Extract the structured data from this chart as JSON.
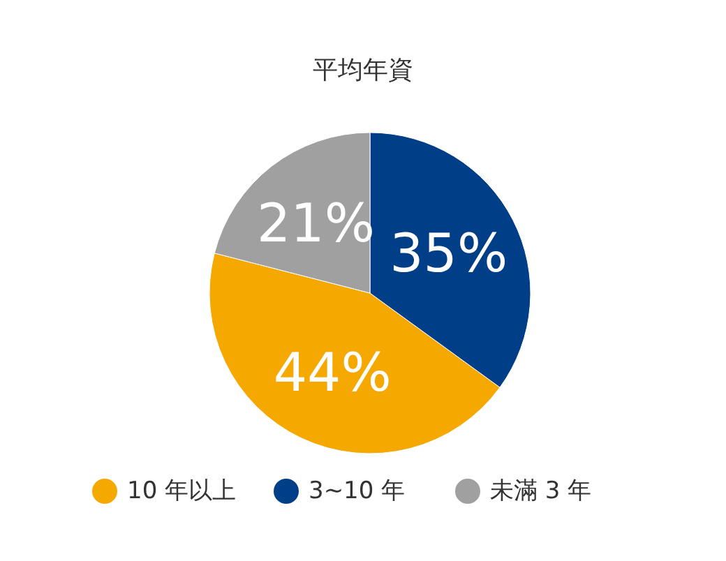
{
  "chart_data": {
    "type": "pie",
    "title": "平均年資",
    "categories": [
      "10 年以上",
      "3~10 年",
      "未滿 3 年"
    ],
    "values": [
      44,
      35,
      21
    ],
    "colors": [
      "#f5a800",
      "#003f87",
      "#a0a0a0"
    ],
    "value_labels": [
      "44%",
      "35%",
      "21%"
    ],
    "legend": "bottom"
  }
}
